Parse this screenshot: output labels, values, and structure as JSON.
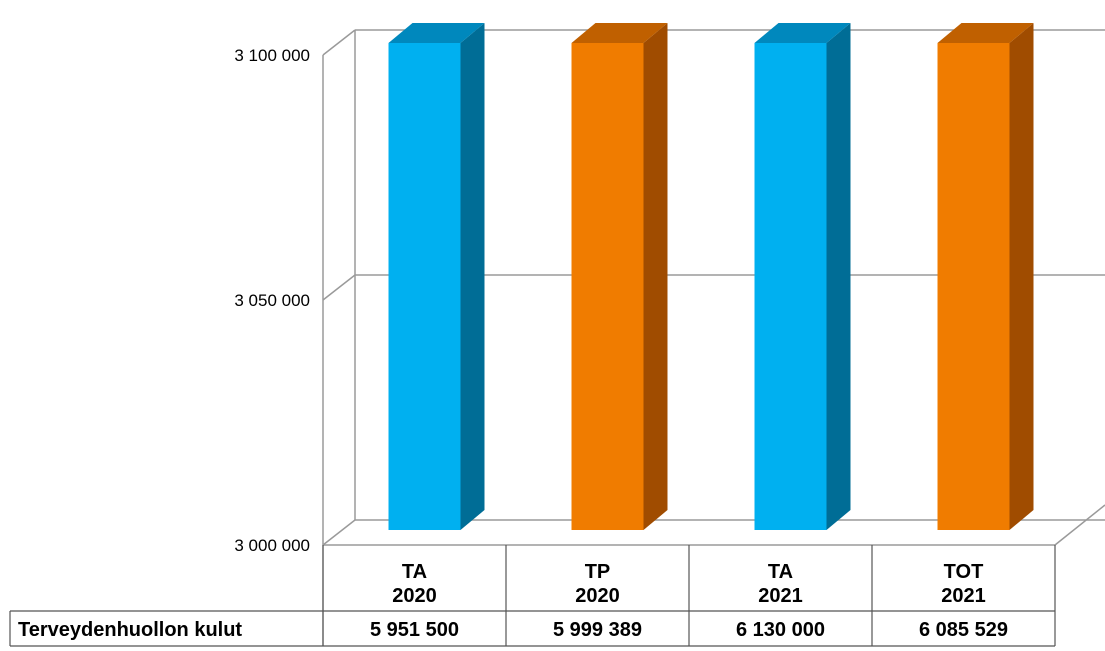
{
  "chart_data": {
    "type": "bar",
    "categories": [
      [
        "TA",
        "2020"
      ],
      [
        "TP",
        "2020"
      ],
      [
        "TA",
        "2021"
      ],
      [
        "TOT",
        "2021"
      ]
    ],
    "series": [
      {
        "name": "Terveydenhuollon kulut",
        "values": [
          5951500,
          5999389,
          6130000,
          6085529
        ]
      }
    ],
    "value_labels": [
      "5 951 500",
      "5 999 389",
      "6 130 000",
      "6 085 529"
    ],
    "ylim": [
      3000000,
      3100000
    ],
    "yticks": [
      3000000,
      3050000,
      3100000
    ],
    "ytick_labels": [
      "3 000 000",
      "3 050 000",
      "3 100 000"
    ],
    "bar_colors": [
      "#00b0f0",
      "#f07c00",
      "#00b0f0",
      "#f07c00"
    ],
    "bar_side_colors": [
      "#006d96",
      "#a04c00",
      "#006d96",
      "#a04c00"
    ],
    "bar_top_colors": [
      "#0088bd",
      "#c06000",
      "#0088bd",
      "#c06000"
    ],
    "grid": true,
    "three_d": true,
    "data_table": true
  }
}
